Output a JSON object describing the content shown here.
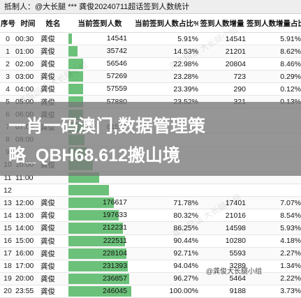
{
  "header": {
    "title": "抵制人：@大长腿 *** 龚俊20240711超话签到人数统计"
  },
  "table": {
    "columns": [
      "序号",
      "时间",
      "姓名",
      "当前签到人数",
      "当前签到人数占比%",
      "签到人数增量",
      "签到人数增量占比%"
    ],
    "rows": [
      {
        "idx": "0",
        "time": "00:30",
        "name": "龚俊",
        "count": "14541",
        "count_num": 14541,
        "pct": "5.91%",
        "inc": "14541",
        "inc_pct": "5.91%"
      },
      {
        "idx": "1",
        "time": "01:00",
        "name": "龚俊",
        "count": "35742",
        "count_num": 35742,
        "pct": "14.53%",
        "inc": "21201",
        "inc_pct": "8.62%"
      },
      {
        "idx": "2",
        "time": "02:00",
        "name": "龚俊",
        "count": "56546",
        "count_num": 56546,
        "pct": "22.98%",
        "inc": "20804",
        "inc_pct": "8.46%"
      },
      {
        "idx": "3",
        "time": "03:00",
        "name": "龚俊",
        "count": "57269",
        "count_num": 57269,
        "pct": "23.28%",
        "inc": "723",
        "inc_pct": "0.29%"
      },
      {
        "idx": "4",
        "time": "04:00",
        "name": "龚俊",
        "count": "57559",
        "count_num": 57559,
        "pct": "23.39%",
        "inc": "290",
        "inc_pct": "0.12%"
      },
      {
        "idx": "5",
        "time": "05:00",
        "name": "龚俊",
        "count": "57880",
        "count_num": 57880,
        "pct": "23.52%",
        "inc": "321",
        "inc_pct": "0.13%"
      },
      {
        "idx": "6",
        "time": "06:00",
        "name": "龚俊",
        "count": "",
        "count_num": 58400,
        "pct": "",
        "inc": "",
        "inc_pct": ""
      },
      {
        "idx": "7",
        "time": "07:00",
        "name": "龚俊",
        "count": "61597",
        "count_num": 61597,
        "pct": "",
        "inc": "",
        "inc_pct": ""
      },
      {
        "idx": "8",
        "time": "08:00",
        "name": "",
        "count": "",
        "count_num": 64000,
        "pct": "",
        "inc": "",
        "inc_pct": ""
      },
      {
        "idx": "9",
        "time": "",
        "name": "",
        "count": "",
        "count_num": 70000,
        "pct": "",
        "inc": "",
        "inc_pct": ""
      },
      {
        "idx": "10",
        "time": "10:00",
        "name": "龚俊",
        "count": "",
        "count_num": 95000,
        "pct": "",
        "inc": "",
        "inc_pct": ""
      },
      {
        "idx": "11",
        "time": "11:00",
        "name": "",
        "count": "",
        "count_num": 120000,
        "pct": "",
        "inc": "",
        "inc_pct": ""
      },
      {
        "idx": "12",
        "time": "",
        "name": "",
        "count": "",
        "count_num": 159000,
        "pct": "",
        "inc": "",
        "inc_pct": ""
      },
      {
        "idx": "13",
        "time": "12:00",
        "name": "龚俊",
        "count": "176617",
        "count_num": 176617,
        "pct": "71.78%",
        "inc": "17401",
        "inc_pct": "7.07%"
      },
      {
        "idx": "14",
        "time": "13:00",
        "name": "龚俊",
        "count": "197633",
        "count_num": 197633,
        "pct": "80.32%",
        "inc": "21016",
        "inc_pct": "8.54%"
      },
      {
        "idx": "15",
        "time": "14:00",
        "name": "龚俊",
        "count": "212231",
        "count_num": 212231,
        "pct": "86.25%",
        "inc": "14598",
        "inc_pct": "5.93%"
      },
      {
        "idx": "16",
        "time": "15:00",
        "name": "龚俊",
        "count": "222511",
        "count_num": 222511,
        "pct": "90.44%",
        "inc": "10280",
        "inc_pct": "4.18%"
      },
      {
        "idx": "17",
        "time": "16:00",
        "name": "龚俊",
        "count": "228104",
        "count_num": 228104,
        "pct": "92.71%",
        "inc": "5593",
        "inc_pct": "2.27%"
      },
      {
        "idx": "18",
        "time": "17:00",
        "name": "龚俊",
        "count": "231393",
        "count_num": 231393,
        "pct": "94.04%",
        "inc": "3289",
        "inc_pct": "1.34%"
      },
      {
        "idx": "19",
        "time": "20:00",
        "name": "龚俊",
        "count": "236857",
        "count_num": 236857,
        "pct": "96.27%",
        "inc": "5464",
        "inc_pct": "2.22%"
      },
      {
        "idx": "20",
        "time": "23:55",
        "name": "龚俊",
        "count": "246045",
        "count_num": 246045,
        "pct": "100.00%",
        "inc": "9188",
        "inc_pct": "3.73%"
      }
    ],
    "bar_max": 246045,
    "bar_color": "#6cc17a"
  },
  "banner": {
    "line1": "一肖一码澳门,数据管理策",
    "line2": "略_QBH68.612搬山境"
  },
  "watermark": {
    "text": "龚俊超话 大长腿小组",
    "badge": "@龚俊大长腿小组"
  }
}
